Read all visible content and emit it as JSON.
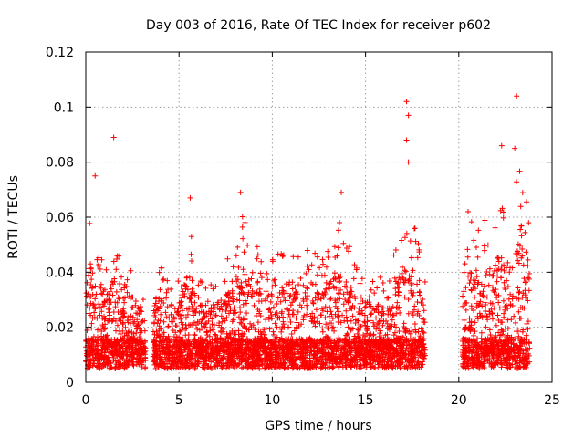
{
  "chart_data": {
    "type": "scatter",
    "title": "Day 003 of 2016, Rate Of TEC Index for receiver p602",
    "xlabel": "GPS time / hours",
    "ylabel": "ROTI / TECUs",
    "xlim": [
      0,
      25
    ],
    "ylim": [
      0,
      0.12
    ],
    "x_ticks": [
      "0",
      "5",
      "10",
      "15",
      "20",
      "25"
    ],
    "y_ticks": [
      "0",
      "0.02",
      "0.04",
      "0.06",
      "0.08",
      "0.1",
      "0.12"
    ],
    "grid": true,
    "marker": "+",
    "color": "#ff0000",
    "data_segments": [
      {
        "start": 0.0,
        "end": 3.2
      },
      {
        "start": 3.6,
        "end": 18.2
      },
      {
        "start": 20.2,
        "end": 23.8
      }
    ],
    "notable_points": [
      {
        "x": 0.5,
        "y": 0.075
      },
      {
        "x": 1.5,
        "y": 0.089
      },
      {
        "x": 5.6,
        "y": 0.067
      },
      {
        "x": 8.3,
        "y": 0.069
      },
      {
        "x": 13.7,
        "y": 0.069
      },
      {
        "x": 17.2,
        "y": 0.102
      },
      {
        "x": 17.3,
        "y": 0.097
      },
      {
        "x": 17.2,
        "y": 0.088
      },
      {
        "x": 17.3,
        "y": 0.08
      },
      {
        "x": 20.5,
        "y": 0.062
      },
      {
        "x": 22.3,
        "y": 0.086
      },
      {
        "x": 23.1,
        "y": 0.104
      },
      {
        "x": 23.0,
        "y": 0.085
      }
    ],
    "peak_envelope": [
      [
        0.0,
        0.045
      ],
      [
        0.3,
        0.065
      ],
      [
        0.6,
        0.05
      ],
      [
        1.0,
        0.035
      ],
      [
        1.5,
        0.055
      ],
      [
        2.0,
        0.03
      ],
      [
        2.5,
        0.04
      ],
      [
        3.2,
        0.03
      ],
      [
        3.6,
        0.035
      ],
      [
        4.0,
        0.038
      ],
      [
        4.5,
        0.032
      ],
      [
        5.0,
        0.035
      ],
      [
        5.5,
        0.055
      ],
      [
        6.0,
        0.035
      ],
      [
        6.5,
        0.03
      ],
      [
        7.0,
        0.035
      ],
      [
        7.5,
        0.04
      ],
      [
        8.0,
        0.045
      ],
      [
        8.3,
        0.062
      ],
      [
        8.7,
        0.05
      ],
      [
        9.0,
        0.058
      ],
      [
        9.5,
        0.035
      ],
      [
        10.0,
        0.042
      ],
      [
        10.5,
        0.045
      ],
      [
        11.0,
        0.05
      ],
      [
        11.5,
        0.042
      ],
      [
        12.0,
        0.052
      ],
      [
        12.5,
        0.04
      ],
      [
        13.0,
        0.045
      ],
      [
        13.5,
        0.058
      ],
      [
        14.0,
        0.048
      ],
      [
        14.5,
        0.038
      ],
      [
        15.0,
        0.04
      ],
      [
        15.5,
        0.032
      ],
      [
        16.0,
        0.035
      ],
      [
        16.5,
        0.045
      ],
      [
        17.0,
        0.06
      ],
      [
        17.5,
        0.058
      ],
      [
        18.0,
        0.04
      ],
      [
        18.2,
        0.035
      ],
      [
        20.2,
        0.05
      ],
      [
        20.7,
        0.055
      ],
      [
        21.2,
        0.05
      ],
      [
        21.7,
        0.06
      ],
      [
        22.2,
        0.065
      ],
      [
        22.7,
        0.06
      ],
      [
        23.2,
        0.075
      ],
      [
        23.6,
        0.07
      ],
      [
        23.8,
        0.075
      ]
    ],
    "baseline": 0.005
  }
}
